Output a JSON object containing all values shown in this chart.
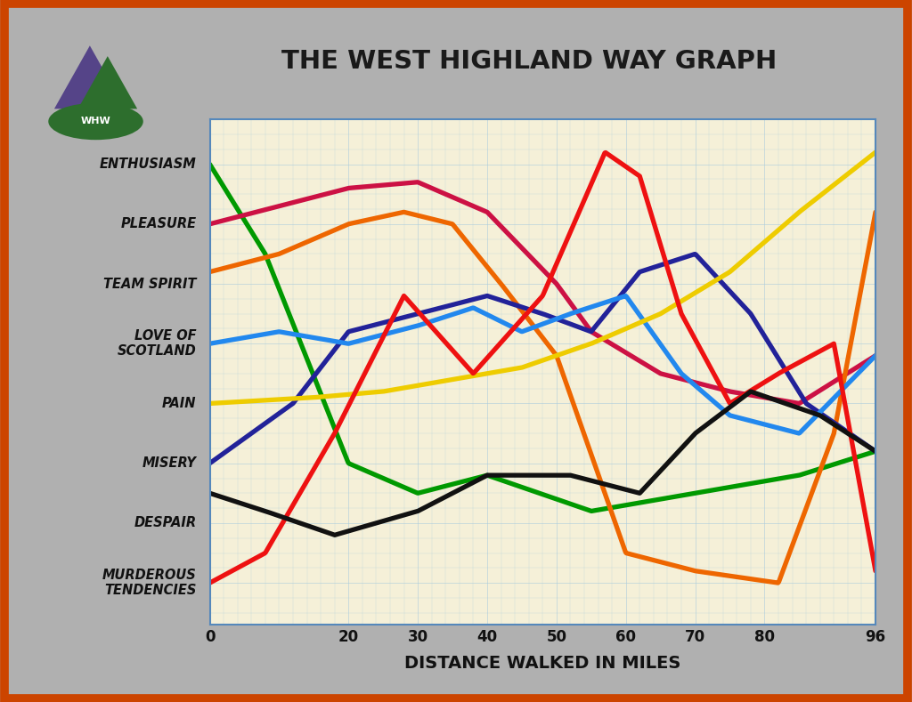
{
  "title": "THE WEST HIGHLAND WAY GRAPH",
  "xlabel": "DISTANCE WALKED IN MILES",
  "bg_color": "#f5f0d8",
  "outer_bg": "#b0b0b0",
  "border_color": "#cc4400",
  "grid_color": "#aaccdd",
  "spine_color": "#5588bb",
  "y_labels": [
    "ENTHUSIASM",
    "PLEASURE",
    "TEAM SPIRIT",
    "LOVE OF\nSCOTLAND",
    "PAIN",
    "MISERY",
    "DESPAIR",
    "MURDEROUS\nTENDENCIES"
  ],
  "x_ticks": [
    0,
    20,
    30,
    40,
    50,
    60,
    70,
    80,
    96
  ],
  "y_positions": [
    8,
    7,
    6,
    5,
    4,
    3,
    2,
    1
  ],
  "lines": {
    "green": {
      "color": "#009900",
      "x": [
        0,
        8,
        20,
        30,
        40,
        55,
        70,
        85,
        96
      ],
      "y": [
        8.0,
        6.5,
        3.0,
        2.5,
        2.8,
        2.2,
        2.5,
        2.8,
        3.2
      ]
    },
    "crimson": {
      "color": "#cc1144",
      "x": [
        0,
        10,
        20,
        30,
        40,
        50,
        55,
        65,
        75,
        85,
        96
      ],
      "y": [
        7.0,
        7.3,
        7.6,
        7.7,
        7.2,
        6.0,
        5.2,
        4.5,
        4.2,
        4.0,
        4.8
      ]
    },
    "orange": {
      "color": "#ee6600",
      "x": [
        0,
        10,
        20,
        28,
        35,
        42,
        50,
        60,
        70,
        82,
        90,
        96
      ],
      "y": [
        6.2,
        6.5,
        7.0,
        7.2,
        7.0,
        6.0,
        4.8,
        1.5,
        1.2,
        1.0,
        3.5,
        7.2
      ]
    },
    "darkblue": {
      "color": "#222299",
      "x": [
        0,
        12,
        20,
        30,
        40,
        48,
        55,
        62,
        70,
        78,
        86,
        96
      ],
      "y": [
        3.0,
        4.0,
        5.2,
        5.5,
        5.8,
        5.5,
        5.2,
        6.2,
        6.5,
        5.5,
        4.0,
        3.2
      ]
    },
    "blue": {
      "color": "#2288ee",
      "x": [
        0,
        10,
        20,
        30,
        38,
        45,
        52,
        60,
        68,
        75,
        85,
        96
      ],
      "y": [
        5.0,
        5.2,
        5.0,
        5.3,
        5.6,
        5.2,
        5.5,
        5.8,
        4.5,
        3.8,
        3.5,
        4.8
      ]
    },
    "yellow": {
      "color": "#eecc00",
      "x": [
        0,
        15,
        25,
        35,
        45,
        55,
        65,
        75,
        85,
        96
      ],
      "y": [
        4.0,
        4.1,
        4.2,
        4.4,
        4.6,
        5.0,
        5.5,
        6.2,
        7.2,
        8.2
      ]
    },
    "red": {
      "color": "#ee1111",
      "x": [
        0,
        8,
        18,
        28,
        38,
        48,
        57,
        62,
        68,
        75,
        82,
        90,
        96
      ],
      "y": [
        1.0,
        1.5,
        3.5,
        5.8,
        4.5,
        5.8,
        8.2,
        7.8,
        5.5,
        4.0,
        4.5,
        5.0,
        1.2
      ]
    },
    "black": {
      "color": "#111111",
      "x": [
        0,
        8,
        18,
        30,
        40,
        52,
        62,
        70,
        78,
        88,
        96
      ],
      "y": [
        2.5,
        2.2,
        1.8,
        2.2,
        2.8,
        2.8,
        2.5,
        3.5,
        4.2,
        3.8,
        3.2
      ]
    }
  }
}
